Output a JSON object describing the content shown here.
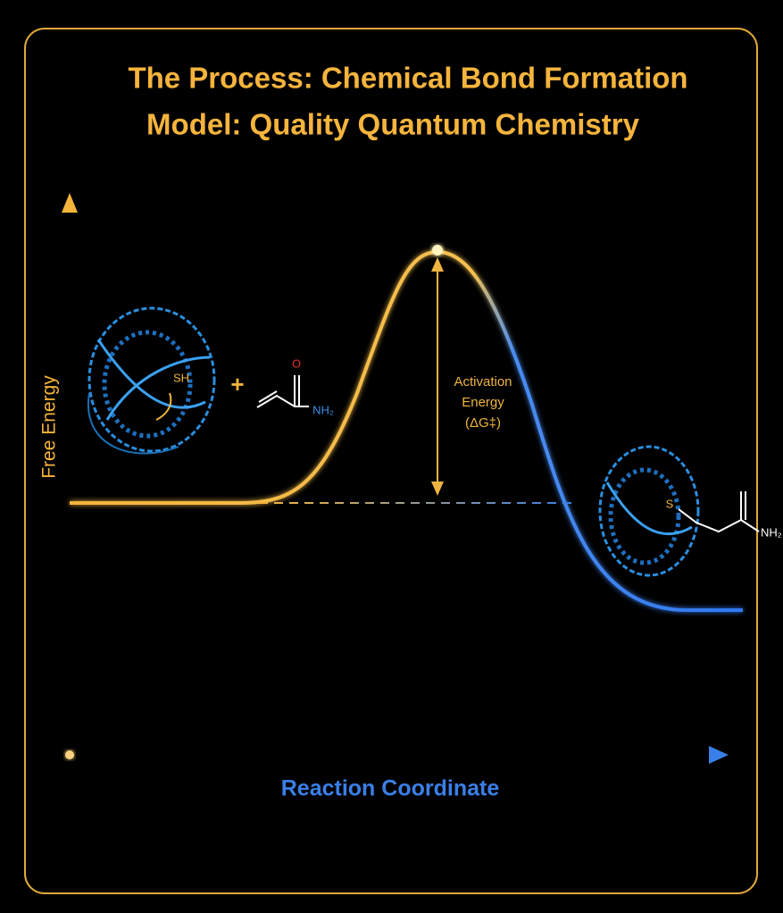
{
  "header": {
    "title": "The Process: Chemical Bond Formation",
    "subtitle": "Model: Quality Quantum Chemistry"
  },
  "axes": {
    "y_label": "Free Energy",
    "x_label": "Reaction Coordinate"
  },
  "annotation": {
    "lines": [
      "Activation",
      "Energy",
      "(ΔG‡)"
    ]
  },
  "reactants": {
    "thiol": "SH",
    "plus": "+",
    "oxygen": "O",
    "amine": "NH₂"
  },
  "product": {
    "sulfur": "S",
    "amine": "NH₂"
  }
}
